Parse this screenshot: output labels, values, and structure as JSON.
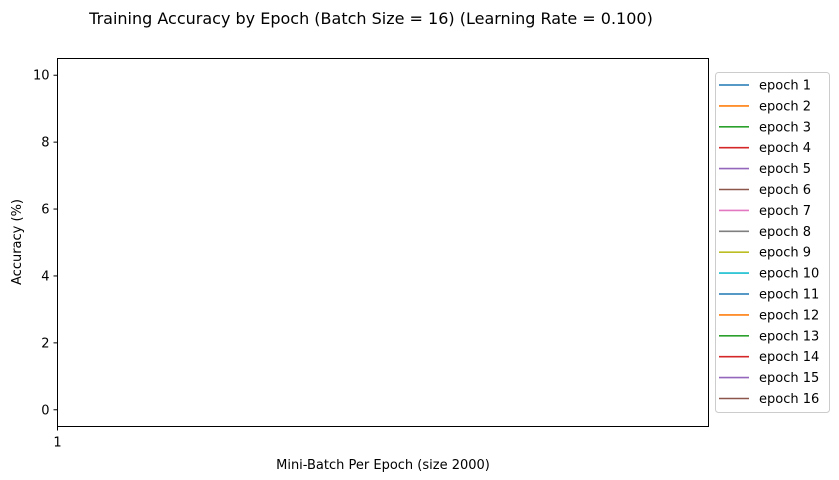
{
  "chart_data": {
    "type": "line",
    "title": "Training Accuracy by Epoch (Batch Size = 16) (Learning Rate = 0.100)",
    "xlabel": "Mini-Batch Per Epoch (size 2000)",
    "ylabel": "Accuracy (%)",
    "x_ticks": [
      "1"
    ],
    "y_ticks": [
      "0",
      "2",
      "4",
      "6",
      "8",
      "10"
    ],
    "ylim": [
      -0.5,
      10.5
    ],
    "grid": false,
    "legend_position": "outside-right",
    "series": [
      {
        "name": "epoch 1",
        "color": "#1f77b4",
        "values": []
      },
      {
        "name": "epoch 2",
        "color": "#ff7f0e",
        "values": []
      },
      {
        "name": "epoch 3",
        "color": "#2ca02c",
        "values": []
      },
      {
        "name": "epoch 4",
        "color": "#d62728",
        "values": []
      },
      {
        "name": "epoch 5",
        "color": "#9467bd",
        "values": []
      },
      {
        "name": "epoch 6",
        "color": "#8c564b",
        "values": []
      },
      {
        "name": "epoch 7",
        "color": "#e377c2",
        "values": []
      },
      {
        "name": "epoch 8",
        "color": "#7f7f7f",
        "values": []
      },
      {
        "name": "epoch 9",
        "color": "#bcbd22",
        "values": []
      },
      {
        "name": "epoch 10",
        "color": "#17becf",
        "values": []
      },
      {
        "name": "epoch 11",
        "color": "#1f77b4",
        "values": []
      },
      {
        "name": "epoch 12",
        "color": "#ff7f0e",
        "values": []
      },
      {
        "name": "epoch 13",
        "color": "#2ca02c",
        "values": []
      },
      {
        "name": "epoch 14",
        "color": "#d62728",
        "values": []
      },
      {
        "name": "epoch 15",
        "color": "#9467bd",
        "values": []
      },
      {
        "name": "epoch 16",
        "color": "#8c564b",
        "values": []
      }
    ]
  }
}
